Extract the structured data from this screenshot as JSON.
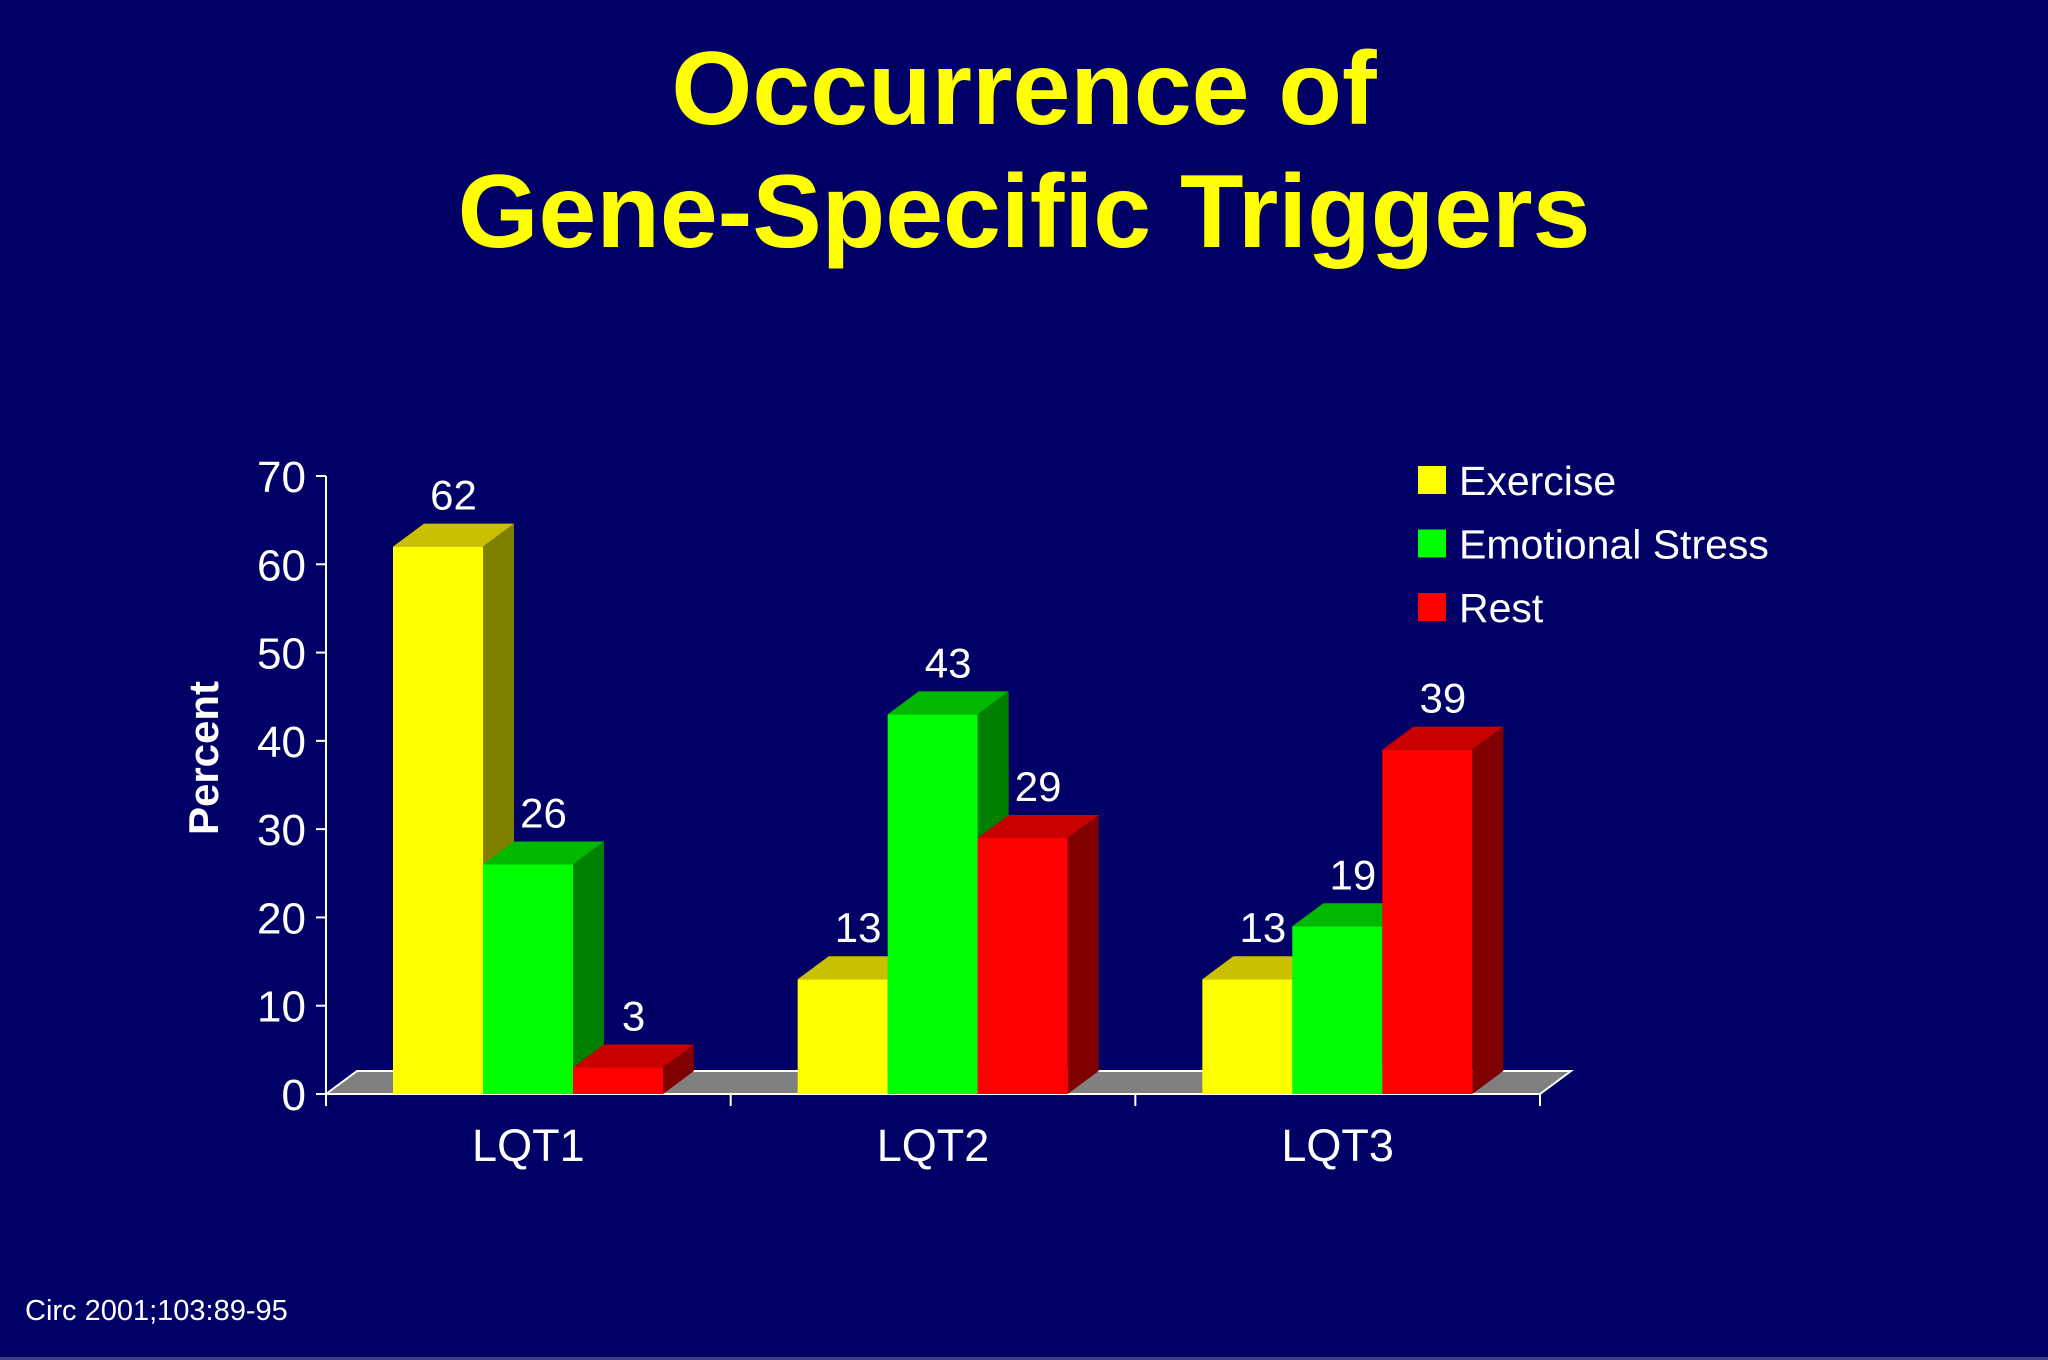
{
  "slide": {
    "title_line1": "Occurrence of",
    "title_line2": "Gene-Specific Triggers",
    "citation": "Circ 2001;103:89-95",
    "background_color": "#000066",
    "title_color": "#ffff00"
  },
  "chart_data": {
    "type": "bar",
    "style": "3d-clustered-column",
    "title": "Occurrence of Gene-Specific Triggers",
    "xlabel": "",
    "ylabel": "Percent",
    "ylim": [
      0,
      70
    ],
    "yticks": [
      0,
      10,
      20,
      30,
      40,
      50,
      60,
      70
    ],
    "categories": [
      "LQT1",
      "LQT2",
      "LQT3"
    ],
    "series": [
      {
        "name": "Exercise",
        "values": [
          62,
          13,
          13
        ],
        "color": "#ffff00",
        "top_color": "#c8c000",
        "side_color": "#808000"
      },
      {
        "name": "Emotional Stress",
        "values": [
          26,
          43,
          19
        ],
        "color": "#00ff00",
        "top_color": "#00b800",
        "side_color": "#008000"
      },
      {
        "name": "Rest",
        "values": [
          3,
          29,
          39
        ],
        "color": "#ff0000",
        "top_color": "#c80000",
        "side_color": "#800000"
      }
    ],
    "data_labels": true,
    "grid": false,
    "legend_position": "top-right",
    "floor_color": "#808080",
    "axis_color": "#ffffff",
    "text_color": "#ffffff"
  }
}
